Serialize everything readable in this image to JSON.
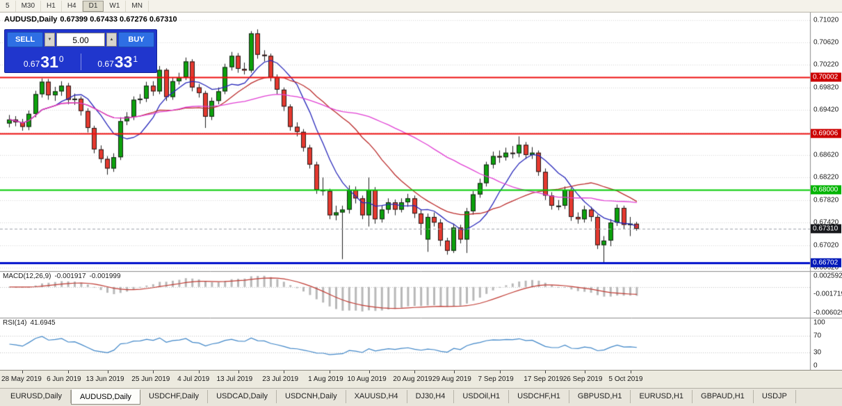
{
  "toolbar": {
    "periods": [
      "5",
      "M30",
      "H1",
      "H4",
      "D1",
      "W1",
      "MN"
    ],
    "active": "D1"
  },
  "chart": {
    "title": "AUDUSD,Daily",
    "ohlc": "0.67399 0.67433 0.67276 0.67310",
    "trade_panel": {
      "sell": "SELL",
      "buy": "BUY",
      "volume": "5.00",
      "sell_big": "0.67",
      "sell_pips": "31",
      "sell_pt": "0",
      "buy_big": "0.67",
      "buy_pips": "33",
      "buy_pt": "1"
    }
  },
  "chart_data": {
    "type": "candlestick",
    "symbol": "AUDUSD",
    "timeframe": "Daily",
    "title": "AUDUSD,Daily",
    "price_range": {
      "max": 0.71125,
      "min": 0.6657
    },
    "x_labels": [
      "28 May 2019",
      "6 Jun 2019",
      "13 Jun 2019",
      "25 Jun 2019",
      "4 Jul 2019",
      "13 Jul 2019",
      "23 Jul 2019",
      "1 Aug 2019",
      "10 Aug 2019",
      "20 Aug 2019",
      "29 Aug 2019",
      "7 Sep 2019",
      "17 Sep 2019",
      "26 Sep 2019",
      "5 Oct 2019"
    ],
    "label_bars": [
      2,
      9,
      15,
      22,
      29,
      35,
      42,
      49,
      55,
      62,
      68,
      75,
      82,
      88,
      95
    ],
    "price_ticks": [
      "0.71020",
      "0.70620",
      "0.70220",
      "0.69820",
      "0.69420",
      "0.69020",
      "0.68620",
      "0.68220",
      "0.67820",
      "0.67420",
      "0.67020",
      "0.66620"
    ],
    "hlines": [
      {
        "price": 0.70002,
        "label": "0.70002",
        "line": "#ee1010",
        "badge": "#cc0000",
        "width": 2
      },
      {
        "price": 0.69006,
        "label": "0.69006",
        "line": "#ee1010",
        "badge": "#cc0000",
        "width": 2
      },
      {
        "price": 0.68,
        "label": "0.68000",
        "line": "#00cc00",
        "badge": "#00b400",
        "width": 2
      },
      {
        "price": 0.66702,
        "label": "0.66702",
        "line": "#0010cc",
        "badge": "#0018b8",
        "width": 3
      }
    ],
    "bid": {
      "price": 0.6731,
      "label": "0.67310",
      "badge": "#17181c"
    },
    "candle_colors": {
      "up": "#0ca10c",
      "down": "#e5392f",
      "outline": "#1c1c1c"
    },
    "moving_averages": [
      {
        "period": 8,
        "color": "#2828bb"
      },
      {
        "period": 20,
        "color": "#bb2a2a"
      },
      {
        "period": 38,
        "color": "#e13fd4"
      }
    ],
    "candles": [
      [
        0.6918,
        0.6933,
        0.6911,
        0.6925
      ],
      [
        0.6925,
        0.6931,
        0.6913,
        0.692
      ],
      [
        0.692,
        0.6926,
        0.6905,
        0.6912
      ],
      [
        0.6912,
        0.6941,
        0.6906,
        0.6935
      ],
      [
        0.6935,
        0.6976,
        0.6929,
        0.697
      ],
      [
        0.697,
        0.6998,
        0.6964,
        0.6992
      ],
      [
        0.6992,
        0.6997,
        0.696,
        0.6968
      ],
      [
        0.6968,
        0.6983,
        0.6958,
        0.6975
      ],
      [
        0.6975,
        0.6993,
        0.6967,
        0.6985
      ],
      [
        0.6985,
        0.699,
        0.6952,
        0.696
      ],
      [
        0.696,
        0.6971,
        0.6951,
        0.6962
      ],
      [
        0.6962,
        0.6966,
        0.6932,
        0.694
      ],
      [
        0.694,
        0.6945,
        0.6902,
        0.691
      ],
      [
        0.691,
        0.6914,
        0.6865,
        0.6872
      ],
      [
        0.6872,
        0.6879,
        0.6848,
        0.6855
      ],
      [
        0.6855,
        0.686,
        0.6827,
        0.6838
      ],
      [
        0.6838,
        0.6865,
        0.6832,
        0.6858
      ],
      [
        0.6858,
        0.6929,
        0.6853,
        0.6922
      ],
      [
        0.6922,
        0.6938,
        0.6915,
        0.693
      ],
      [
        0.693,
        0.6966,
        0.6924,
        0.696
      ],
      [
        0.696,
        0.697,
        0.6953,
        0.6962
      ],
      [
        0.6962,
        0.6992,
        0.6956,
        0.6985
      ],
      [
        0.6985,
        0.6993,
        0.6967,
        0.6975
      ],
      [
        0.6975,
        0.702,
        0.697,
        0.7013
      ],
      [
        0.7013,
        0.7016,
        0.6958,
        0.6965
      ],
      [
        0.6965,
        0.6999,
        0.696,
        0.6993
      ],
      [
        0.6993,
        0.7008,
        0.6987,
        0.7
      ],
      [
        0.7,
        0.7035,
        0.6995,
        0.7028
      ],
      [
        0.7028,
        0.7032,
        0.6975,
        0.6982
      ],
      [
        0.6982,
        0.6988,
        0.6964,
        0.6972
      ],
      [
        0.6972,
        0.6976,
        0.691,
        0.693
      ],
      [
        0.693,
        0.6964,
        0.6924,
        0.6958
      ],
      [
        0.6958,
        0.6982,
        0.6952,
        0.6975
      ],
      [
        0.6975,
        0.7024,
        0.697,
        0.7018
      ],
      [
        0.7018,
        0.7045,
        0.7012,
        0.7038
      ],
      [
        0.7038,
        0.7043,
        0.7008,
        0.7015
      ],
      [
        0.7015,
        0.7026,
        0.7005,
        0.7012
      ],
      [
        0.7012,
        0.7082,
        0.7008,
        0.7078
      ],
      [
        0.7078,
        0.7085,
        0.7033,
        0.704
      ],
      [
        0.704,
        0.7048,
        0.7028,
        0.7038
      ],
      [
        0.7038,
        0.7042,
        0.6993,
        0.7
      ],
      [
        0.7,
        0.7005,
        0.697,
        0.6978
      ],
      [
        0.6978,
        0.6982,
        0.694,
        0.6948
      ],
      [
        0.6948,
        0.6952,
        0.6905,
        0.6912
      ],
      [
        0.6912,
        0.692,
        0.6895,
        0.6903
      ],
      [
        0.6903,
        0.6908,
        0.6868,
        0.6875
      ],
      [
        0.6875,
        0.688,
        0.6838,
        0.6845
      ],
      [
        0.6845,
        0.685,
        0.6793,
        0.68
      ],
      [
        0.68,
        0.6822,
        0.679,
        0.6798
      ],
      [
        0.6798,
        0.6802,
        0.6748,
        0.6755
      ],
      [
        0.6755,
        0.6772,
        0.6746,
        0.676
      ],
      [
        0.676,
        0.6772,
        0.6677,
        0.6765
      ],
      [
        0.6765,
        0.6808,
        0.6758,
        0.68
      ],
      [
        0.68,
        0.6806,
        0.6776,
        0.6785
      ],
      [
        0.6785,
        0.679,
        0.6748,
        0.6755
      ],
      [
        0.6755,
        0.6822,
        0.6735,
        0.68
      ],
      [
        0.68,
        0.6805,
        0.674,
        0.6748
      ],
      [
        0.6748,
        0.6772,
        0.6742,
        0.6765
      ],
      [
        0.6765,
        0.6785,
        0.6758,
        0.6778
      ],
      [
        0.6778,
        0.6783,
        0.6755,
        0.6765
      ],
      [
        0.6765,
        0.6785,
        0.676,
        0.6778
      ],
      [
        0.6778,
        0.6793,
        0.677,
        0.6785
      ],
      [
        0.6785,
        0.679,
        0.675,
        0.6758
      ],
      [
        0.6758,
        0.6765,
        0.672,
        0.674
      ],
      [
        0.6712,
        0.6758,
        0.669,
        0.6752
      ],
      [
        0.6752,
        0.676,
        0.6735,
        0.6742
      ],
      [
        0.6742,
        0.6748,
        0.67,
        0.671
      ],
      [
        0.671,
        0.6715,
        0.6685,
        0.6692
      ],
      [
        0.6692,
        0.674,
        0.6688,
        0.6733
      ],
      [
        0.6733,
        0.6738,
        0.6705,
        0.6712
      ],
      [
        0.6712,
        0.6768,
        0.6688,
        0.6762
      ],
      [
        0.6762,
        0.6798,
        0.6756,
        0.6792
      ],
      [
        0.6792,
        0.682,
        0.6786,
        0.6812
      ],
      [
        0.6812,
        0.685,
        0.6806,
        0.6845
      ],
      [
        0.6845,
        0.6868,
        0.6838,
        0.686
      ],
      [
        0.686,
        0.687,
        0.6848,
        0.6858
      ],
      [
        0.6858,
        0.6875,
        0.6852,
        0.6866
      ],
      [
        0.6866,
        0.6878,
        0.6856,
        0.6865
      ],
      [
        0.6865,
        0.6895,
        0.6858,
        0.688
      ],
      [
        0.688,
        0.6885,
        0.6855,
        0.6862
      ],
      [
        0.6862,
        0.6876,
        0.6855,
        0.6866
      ],
      [
        0.6866,
        0.687,
        0.6825,
        0.6832
      ],
      [
        0.6832,
        0.6838,
        0.6782,
        0.679
      ],
      [
        0.679,
        0.6796,
        0.6765,
        0.6772
      ],
      [
        0.6772,
        0.6782,
        0.6764,
        0.6772
      ],
      [
        0.6772,
        0.6806,
        0.6766,
        0.68
      ],
      [
        0.68,
        0.6804,
        0.6745,
        0.6752
      ],
      [
        0.6752,
        0.676,
        0.674,
        0.6748
      ],
      [
        0.6748,
        0.6772,
        0.6742,
        0.6765
      ],
      [
        0.6765,
        0.677,
        0.6744,
        0.6752
      ],
      [
        0.6752,
        0.6756,
        0.6695,
        0.6702
      ],
      [
        0.6702,
        0.6718,
        0.667,
        0.671
      ],
      [
        0.671,
        0.6748,
        0.67,
        0.6742
      ],
      [
        0.6742,
        0.6774,
        0.6736,
        0.6768
      ],
      [
        0.6768,
        0.6772,
        0.673,
        0.6738
      ],
      [
        0.6738,
        0.6752,
        0.6718,
        0.674
      ],
      [
        0.67399,
        0.67433,
        0.67276,
        0.6731
      ]
    ],
    "macd": {
      "label": "MACD(12,26,9)",
      "value_main": "-0.001917",
      "value_signal": "-0.001999",
      "fast": 12,
      "slow": 26,
      "signal": 9,
      "hist_color": "#b8b8b8",
      "signal_color": "#c03830",
      "axis": [
        {
          "v": 0.002592,
          "t": "0.002592"
        },
        {
          "v": -0.001719,
          "t": "-0.001719"
        },
        {
          "v": -0.006029,
          "t": "-0.006029"
        }
      ]
    },
    "rsi": {
      "label": "RSI(14)",
      "value": "41.6945",
      "period": 14,
      "color": "#3f86c8",
      "levels": [
        70,
        30
      ],
      "axis": [
        {
          "v": 100,
          "t": "100"
        },
        {
          "v": 70,
          "t": "70"
        },
        {
          "v": 30,
          "t": "30"
        },
        {
          "v": 0,
          "t": "0"
        }
      ]
    }
  },
  "tabs": {
    "items": [
      "EURUSD,Daily",
      "AUDUSD,Daily",
      "USDCHF,Daily",
      "USDCAD,Daily",
      "USDCNH,Daily",
      "XAUUSD,H4",
      "DJ30,H4",
      "USDOil,H1",
      "USDCHF,H1",
      "GBPUSD,H1",
      "EURUSD,H1",
      "GBPAUD,H1",
      "USDJP"
    ],
    "active": "AUDUSD,Daily"
  }
}
